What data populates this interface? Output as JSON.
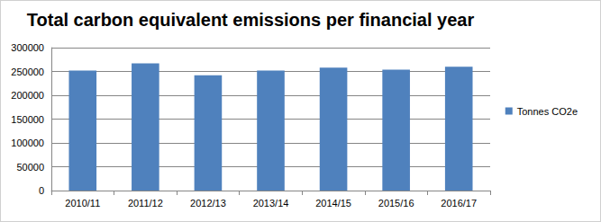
{
  "chart_data": {
    "type": "bar",
    "title": "Total carbon equivalent emissions per financial year",
    "categories": [
      "2010/11",
      "2011/12",
      "2012/13",
      "2013/14",
      "2014/15",
      "2015/16",
      "2016/17"
    ],
    "series": [
      {
        "name": "Tonnes CO2e",
        "color": "#4f81bd",
        "values": [
          252000,
          267000,
          242000,
          252000,
          258000,
          254000,
          260000
        ]
      }
    ],
    "ylim": [
      0,
      300000
    ],
    "yticks": [
      0,
      50000,
      100000,
      150000,
      200000,
      250000,
      300000
    ],
    "grid": true,
    "legend": "right"
  }
}
